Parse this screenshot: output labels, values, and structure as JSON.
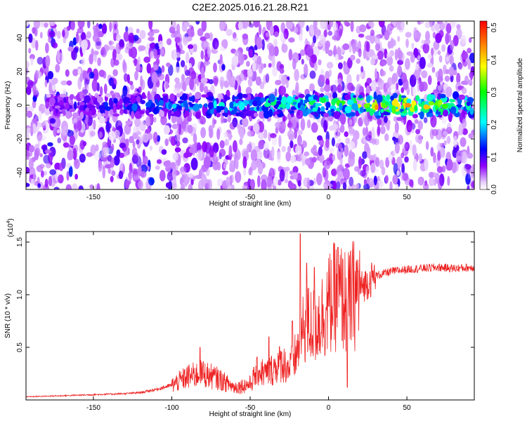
{
  "title": "C2E2.2025.016.21.28.R21",
  "chart_data": [
    {
      "type": "heatmap",
      "xlabel": "Height of straight line (km)",
      "ylabel": "Frequency (Hz)",
      "xlim": [
        -193,
        93
      ],
      "ylim": [
        -50,
        50
      ],
      "xticks": [
        -150,
        -100,
        -50,
        0,
        50
      ],
      "yticks": [
        -40,
        -20,
        0,
        20,
        40
      ],
      "colorbar": {
        "label": "Normalized spectral amplitude",
        "range": [
          0,
          0.52
        ],
        "ticks": [
          0.0,
          0.1,
          0.2,
          0.3,
          0.4,
          0.5
        ],
        "tick_labels": [
          "0.0",
          "0.1",
          "0.2",
          "0.3",
          "0.4",
          "0.5"
        ],
        "colors": [
          "#ffffff",
          "#8f00ff",
          "#0000ff",
          "#00ffff",
          "#00ff00",
          "#ffff00",
          "#ff8000",
          "#ff0000"
        ]
      },
      "ridge": {
        "frequency": 0,
        "peak_heights_km": [
          -160,
          -110,
          -80,
          -50,
          -20,
          10,
          40,
          60,
          85
        ],
        "peak_amplitudes": [
          0.12,
          0.18,
          0.22,
          0.26,
          0.3,
          0.38,
          0.5,
          0.45,
          0.3
        ]
      }
    },
    {
      "type": "line",
      "xlabel": "Height of straight line (km)",
      "ylabel": "SNR (10 * v/v)",
      "y_multiplier_label": "(x10",
      "y_multiplier_exp": "4",
      "y_multiplier_close": ")",
      "xlim": [
        -193,
        93
      ],
      "ylim": [
        0,
        1.6
      ],
      "xticks": [
        -150,
        -100,
        -50,
        0,
        50
      ],
      "yticks": [
        0.5,
        1.0,
        1.5
      ],
      "ytick_labels": [
        "0.5",
        "1.0",
        "1.5"
      ],
      "series": [
        {
          "color": "#ee2222",
          "x": [
            -193,
            -170,
            -150,
            -130,
            -120,
            -110,
            -100,
            -90,
            -80,
            -70,
            -60,
            -50,
            -45,
            -40,
            -35,
            -30,
            -25,
            -20,
            -15,
            -10,
            -5,
            0,
            5,
            10,
            12,
            15,
            20,
            25,
            30,
            40,
            50,
            60,
            70,
            80,
            93
          ],
          "y": [
            0.03,
            0.04,
            0.05,
            0.06,
            0.07,
            0.1,
            0.14,
            0.22,
            0.25,
            0.2,
            0.12,
            0.15,
            0.28,
            0.25,
            0.3,
            0.36,
            0.3,
            0.45,
            0.72,
            0.7,
            0.78,
            0.9,
            1.0,
            0.95,
            0.9,
            0.98,
            1.06,
            1.12,
            1.18,
            1.22,
            1.24,
            1.25,
            1.26,
            1.25,
            1.26
          ],
          "spikes": [
            {
              "x": -18,
              "y": 1.58
            },
            {
              "x": -14,
              "y": 1.3
            },
            {
              "x": -9,
              "y": 1.26
            },
            {
              "x": 6,
              "y": 1.45
            },
            {
              "x": 12,
              "y": 0.12
            },
            {
              "x": -82,
              "y": 0.5
            },
            {
              "x": -38,
              "y": 0.6
            },
            {
              "x": -23,
              "y": 0.75
            }
          ]
        }
      ]
    }
  ]
}
